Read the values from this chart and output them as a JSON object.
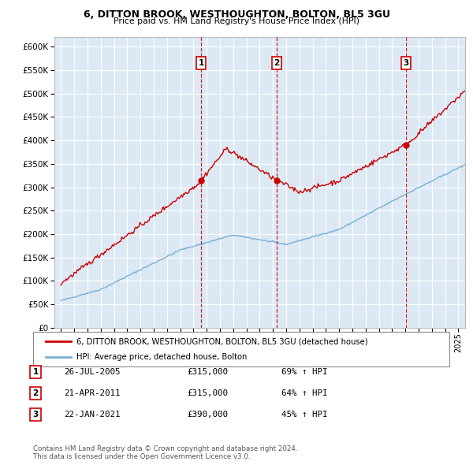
{
  "title": "6, DITTON BROOK, WESTHOUGHTON, BOLTON, BL5 3GU",
  "subtitle": "Price paid vs. HM Land Registry's House Price Index (HPI)",
  "red_label": "6, DITTON BROOK, WESTHOUGHTON, BOLTON, BL5 3GU (detached house)",
  "blue_label": "HPI: Average price, detached house, Bolton",
  "transactions": [
    {
      "num": 1,
      "date": "26-JUL-2005",
      "price": 315000,
      "hpi_pct": "69% ↑ HPI",
      "year": 2005.57
    },
    {
      "num": 2,
      "date": "21-APR-2011",
      "price": 315000,
      "hpi_pct": "64% ↑ HPI",
      "year": 2011.3
    },
    {
      "num": 3,
      "date": "22-JAN-2021",
      "price": 390000,
      "hpi_pct": "45% ↑ HPI",
      "year": 2021.06
    }
  ],
  "footer": "Contains HM Land Registry data © Crown copyright and database right 2024.\nThis data is licensed under the Open Government Licence v3.0.",
  "ylim": [
    0,
    620000
  ],
  "yticks": [
    0,
    50000,
    100000,
    150000,
    200000,
    250000,
    300000,
    350000,
    400000,
    450000,
    500000,
    550000,
    600000
  ],
  "xlim_start": 1994.5,
  "xlim_end": 2025.5,
  "background_color": "#dce9f5",
  "grid_color": "#ffffff",
  "red_color": "#cc0000",
  "blue_color": "#7aafd4",
  "vline_color": "#cc0000"
}
